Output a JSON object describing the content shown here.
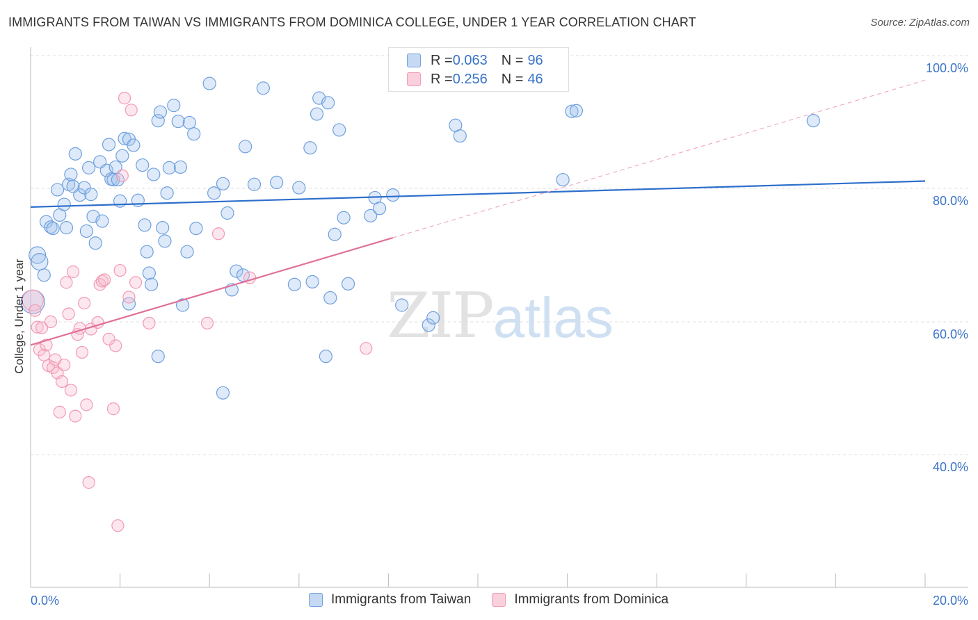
{
  "header": {
    "title": "IMMIGRANTS FROM TAIWAN VS IMMIGRANTS FROM DOMINICA COLLEGE, UNDER 1 YEAR CORRELATION CHART",
    "source": "Source: ZipAtlas.com"
  },
  "watermark": {
    "zip": "ZIP",
    "atlas": "atlas"
  },
  "legend": {
    "rows": [
      {
        "r_label": "R = ",
        "r_value": "0.063",
        "n_label": "N = ",
        "n_value": "96"
      },
      {
        "r_label": "R = ",
        "r_value": "0.256",
        "n_label": "N = ",
        "n_value": "46"
      }
    ]
  },
  "bottom_legend": {
    "taiwan": "Immigrants from Taiwan",
    "dominica": "Immigrants from Dominica"
  },
  "chart_data": {
    "type": "scatter",
    "title": "IMMIGRANTS FROM TAIWAN VS IMMIGRANTS FROM DOMINICA COLLEGE, UNDER 1 YEAR CORRELATION CHART",
    "xlabel": "",
    "ylabel": "College, Under 1 year",
    "xlim": [
      0,
      20
    ],
    "ylim": [
      20,
      100
    ],
    "x_tick_labels": [
      "0.0%",
      "20.0%"
    ],
    "y_ticks": [
      40,
      60,
      80,
      100
    ],
    "y_tick_labels": [
      "40.0%",
      "60.0%",
      "80.0%",
      "100.0%"
    ],
    "colors": {
      "taiwan": "#6fa0dd",
      "dominica": "#f19ab4",
      "taiwan_line": "#2d6fcc",
      "dominica_line": "#e07099"
    },
    "series": [
      {
        "name": "Immigrants from Taiwan",
        "R": 0.063,
        "N": 96,
        "trend": {
          "x": [
            0,
            20
          ],
          "y": [
            77.2,
            81.1
          ]
        },
        "points": [
          [
            0.05,
            63.0
          ],
          [
            0.15,
            70.0
          ],
          [
            0.2,
            69.0
          ],
          [
            0.3,
            67.0
          ],
          [
            0.35,
            75.0
          ],
          [
            0.45,
            74.2
          ],
          [
            0.5,
            74.0
          ],
          [
            0.6,
            79.8
          ],
          [
            0.65,
            76.0
          ],
          [
            0.75,
            77.6
          ],
          [
            0.85,
            80.6
          ],
          [
            0.9,
            82.1
          ],
          [
            0.95,
            80.3
          ],
          [
            1.0,
            85.2
          ],
          [
            1.1,
            79.0
          ],
          [
            1.2,
            80.1
          ],
          [
            1.25,
            73.6
          ],
          [
            1.3,
            83.1
          ],
          [
            1.4,
            75.8
          ],
          [
            1.45,
            71.8
          ],
          [
            1.55,
            84.0
          ],
          [
            1.6,
            75.1
          ],
          [
            1.7,
            82.7
          ],
          [
            1.75,
            86.6
          ],
          [
            1.8,
            81.4
          ],
          [
            1.85,
            81.3
          ],
          [
            1.9,
            83.2
          ],
          [
            1.95,
            81.3
          ],
          [
            2.0,
            78.1
          ],
          [
            2.05,
            84.9
          ],
          [
            2.1,
            87.5
          ],
          [
            2.2,
            87.4
          ],
          [
            2.3,
            86.5
          ],
          [
            2.4,
            78.2
          ],
          [
            2.5,
            83.5
          ],
          [
            2.55,
            74.5
          ],
          [
            2.6,
            70.5
          ],
          [
            2.65,
            67.3
          ],
          [
            2.7,
            65.6
          ],
          [
            2.75,
            82.1
          ],
          [
            2.85,
            90.2
          ],
          [
            2.9,
            91.5
          ],
          [
            2.95,
            74.1
          ],
          [
            3.0,
            72.1
          ],
          [
            3.05,
            79.3
          ],
          [
            3.1,
            83.1
          ],
          [
            3.2,
            92.5
          ],
          [
            3.3,
            90.1
          ],
          [
            3.35,
            83.2
          ],
          [
            3.5,
            70.5
          ],
          [
            3.55,
            89.9
          ],
          [
            3.65,
            88.2
          ],
          [
            3.7,
            74.0
          ],
          [
            4.0,
            95.8
          ],
          [
            4.1,
            79.3
          ],
          [
            4.3,
            80.7
          ],
          [
            4.4,
            76.3
          ],
          [
            4.5,
            64.8
          ],
          [
            4.6,
            67.6
          ],
          [
            4.75,
            67.0
          ],
          [
            4.8,
            86.3
          ],
          [
            5.0,
            80.6
          ],
          [
            5.2,
            95.1
          ],
          [
            5.5,
            80.9
          ],
          [
            5.9,
            65.6
          ],
          [
            6.0,
            80.1
          ],
          [
            6.25,
            86.1
          ],
          [
            6.3,
            66.0
          ],
          [
            6.4,
            91.2
          ],
          [
            6.45,
            93.6
          ],
          [
            6.6,
            54.8
          ],
          [
            6.65,
            92.9
          ],
          [
            6.7,
            63.6
          ],
          [
            6.8,
            73.1
          ],
          [
            6.9,
            88.8
          ],
          [
            7.0,
            75.6
          ],
          [
            7.1,
            65.7
          ],
          [
            7.6,
            75.9
          ],
          [
            7.7,
            78.6
          ],
          [
            7.8,
            77.0
          ],
          [
            8.1,
            79.0
          ],
          [
            8.3,
            62.5
          ],
          [
            8.9,
            59.5
          ],
          [
            9.0,
            60.6
          ],
          [
            9.5,
            89.5
          ],
          [
            9.6,
            87.9
          ],
          [
            2.2,
            62.7
          ],
          [
            2.85,
            54.8
          ],
          [
            4.3,
            49.3
          ],
          [
            11.9,
            81.3
          ],
          [
            12.1,
            91.6
          ],
          [
            12.2,
            91.7
          ],
          [
            17.5,
            90.2
          ],
          [
            3.4,
            62.5
          ],
          [
            0.8,
            74.1
          ],
          [
            1.35,
            79.1
          ]
        ]
      },
      {
        "name": "Immigrants from Dominica",
        "R": 0.256,
        "N": 46,
        "trend": {
          "x": [
            0,
            8.1
          ],
          "y": [
            56.5,
            72.6
          ]
        },
        "trend_dashed": {
          "x": [
            8.1,
            20
          ],
          "y": [
            72.6,
            96.3
          ]
        },
        "points": [
          [
            0.05,
            63.2
          ],
          [
            0.1,
            61.7
          ],
          [
            0.15,
            59.2
          ],
          [
            0.2,
            55.8
          ],
          [
            0.25,
            59.1
          ],
          [
            0.3,
            55.0
          ],
          [
            0.35,
            56.5
          ],
          [
            0.4,
            53.4
          ],
          [
            0.45,
            60.0
          ],
          [
            0.5,
            53.1
          ],
          [
            0.55,
            54.3
          ],
          [
            0.6,
            52.3
          ],
          [
            0.65,
            46.4
          ],
          [
            0.7,
            51.0
          ],
          [
            0.75,
            53.5
          ],
          [
            0.8,
            65.9
          ],
          [
            0.85,
            61.2
          ],
          [
            0.9,
            49.7
          ],
          [
            0.95,
            67.5
          ],
          [
            1.0,
            45.8
          ],
          [
            1.05,
            58.1
          ],
          [
            1.1,
            59.0
          ],
          [
            1.15,
            55.4
          ],
          [
            1.2,
            62.8
          ],
          [
            1.25,
            47.5
          ],
          [
            1.3,
            35.8
          ],
          [
            1.35,
            58.9
          ],
          [
            1.5,
            59.9
          ],
          [
            1.55,
            65.6
          ],
          [
            1.6,
            66.1
          ],
          [
            1.65,
            66.3
          ],
          [
            1.75,
            57.4
          ],
          [
            1.85,
            46.9
          ],
          [
            1.9,
            56.4
          ],
          [
            1.95,
            29.3
          ],
          [
            2.0,
            67.7
          ],
          [
            2.05,
            81.9
          ],
          [
            2.1,
            93.6
          ],
          [
            2.2,
            63.7
          ],
          [
            2.25,
            91.8
          ],
          [
            2.35,
            65.9
          ],
          [
            2.65,
            59.8
          ],
          [
            3.95,
            59.8
          ],
          [
            4.2,
            73.2
          ],
          [
            4.9,
            66.6
          ],
          [
            7.5,
            56.0
          ]
        ]
      }
    ]
  }
}
